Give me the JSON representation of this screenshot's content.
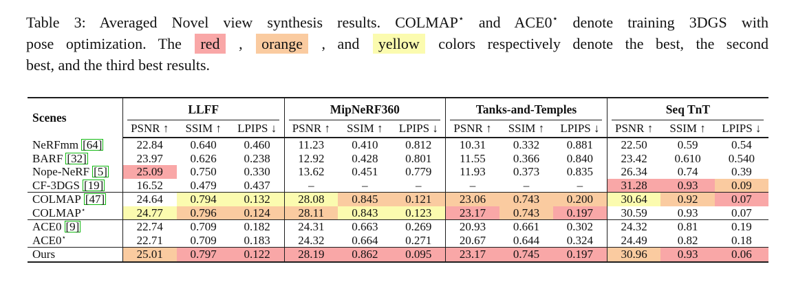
{
  "colors": {
    "best": "#F9A7A7",
    "second": "#FACBA0",
    "third": "#FBFBAF",
    "cite_border": "#0EB80E"
  },
  "caption": {
    "lines": [
      {
        "justify": true,
        "segments": [
          {
            "text": "Table 3: Averaged Novel view synthesis results. COLMAP",
            "style": "plain"
          },
          {
            "text": "⋆",
            "style": "sup",
            "name": "star-superscript"
          },
          {
            "text": " and ACE0",
            "style": "plain"
          },
          {
            "text": "⋆",
            "style": "sup",
            "name": "star-superscript"
          },
          {
            "text": " denote training 3DGS with",
            "style": "plain"
          }
        ]
      },
      {
        "justify": true,
        "segments": [
          {
            "text": "pose optimization. The ",
            "style": "plain"
          },
          {
            "text": "red",
            "style": "hl-r",
            "name": "red-swatch"
          },
          {
            "text": " , ",
            "style": "plain"
          },
          {
            "text": "orange",
            "style": "hl-o",
            "name": "orange-swatch"
          },
          {
            "text": " , and ",
            "style": "plain"
          },
          {
            "text": "yellow",
            "style": "hl-y",
            "name": "yellow-swatch"
          },
          {
            "text": " colors respectively denote the best, the second",
            "style": "plain"
          }
        ]
      },
      {
        "justify": false,
        "segments": [
          {
            "text": "best, and the third best results.",
            "style": "plain"
          }
        ]
      }
    ]
  },
  "table": {
    "scenes_header": "Scenes",
    "groups": [
      {
        "label": "LLFF"
      },
      {
        "label": "MipNeRF360"
      },
      {
        "label": "Tanks-and-Temples"
      },
      {
        "label": "Seq TnT"
      }
    ],
    "metric_headers": [
      "PSNR ↑",
      "SSIM ↑",
      "LPIPS ↓"
    ],
    "rows": [
      {
        "scene": {
          "name": "NeRFmm",
          "cite": "[64]"
        },
        "section_start": false,
        "values": [
          "22.84",
          "0.640",
          "0.460",
          "11.23",
          "0.410",
          "0.812",
          "10.31",
          "0.332",
          "0.881",
          "22.50",
          "0.59",
          "0.54"
        ],
        "hl": [
          null,
          null,
          null,
          null,
          null,
          null,
          null,
          null,
          null,
          null,
          null,
          null
        ]
      },
      {
        "scene": {
          "name": "BARF",
          "cite": "[32]"
        },
        "section_start": false,
        "values": [
          "23.97",
          "0.626",
          "0.238",
          "12.92",
          "0.428",
          "0.801",
          "11.55",
          "0.366",
          "0.840",
          "23.42",
          "0.610",
          "0.540"
        ],
        "hl": [
          null,
          null,
          null,
          null,
          null,
          null,
          null,
          null,
          null,
          null,
          null,
          null
        ]
      },
      {
        "scene": {
          "name": "Nope-NeRF",
          "cite": "[5]"
        },
        "section_start": false,
        "values": [
          "25.09",
          "0.750",
          "0.330",
          "13.62",
          "0.451",
          "0.779",
          "11.93",
          "0.373",
          "0.835",
          "26.34",
          "0.74",
          "0.39"
        ],
        "hl": [
          "r",
          null,
          null,
          null,
          null,
          null,
          null,
          null,
          null,
          null,
          null,
          null
        ]
      },
      {
        "scene": {
          "name": "CF-3DGS",
          "cite": "[19]"
        },
        "section_start": false,
        "values": [
          "16.52",
          "0.479",
          "0.437",
          "–",
          "–",
          "–",
          "–",
          "–",
          "–",
          "31.28",
          "0.93",
          "0.09"
        ],
        "hl": [
          null,
          null,
          null,
          null,
          null,
          null,
          null,
          null,
          null,
          "r",
          "r",
          "o"
        ]
      },
      {
        "scene": {
          "name": "COLMAP",
          "cite": "[47]"
        },
        "section_start": true,
        "values": [
          "24.64",
          "0.794",
          "0.132",
          "28.08",
          "0.845",
          "0.121",
          "23.06",
          "0.743",
          "0.200",
          "30.64",
          "0.92",
          "0.07"
        ],
        "hl": [
          null,
          "y",
          "y",
          "y",
          "o",
          "o",
          "o",
          "o",
          "o",
          "y",
          "o",
          "r"
        ]
      },
      {
        "scene": {
          "name": "COLMAP",
          "sup": "⋆"
        },
        "section_start": false,
        "values": [
          "24.77",
          "0.796",
          "0.124",
          "28.11",
          "0.843",
          "0.123",
          "23.17",
          "0.743",
          "0.197",
          "30.59",
          "0.93",
          "0.07"
        ],
        "hl": [
          "y",
          "o",
          "o",
          "o",
          "y",
          "y",
          "r",
          "o",
          "r",
          null,
          null,
          null
        ]
      },
      {
        "scene": {
          "name": "ACE0",
          "cite": "[9]"
        },
        "section_start": true,
        "values": [
          "22.74",
          "0.709",
          "0.182",
          "24.31",
          "0.663",
          "0.269",
          "20.93",
          "0.661",
          "0.302",
          "24.32",
          "0.81",
          "0.19"
        ],
        "hl": [
          null,
          null,
          null,
          null,
          null,
          null,
          null,
          null,
          null,
          null,
          null,
          null
        ]
      },
      {
        "scene": {
          "name": "ACE0",
          "sup": "⋆"
        },
        "section_start": false,
        "values": [
          "22.71",
          "0.709",
          "0.183",
          "24.32",
          "0.664",
          "0.271",
          "20.67",
          "0.644",
          "0.324",
          "24.49",
          "0.82",
          "0.18"
        ],
        "hl": [
          null,
          null,
          null,
          null,
          null,
          null,
          null,
          null,
          null,
          null,
          null,
          null
        ]
      },
      {
        "scene": {
          "name": "Ours"
        },
        "section_start": true,
        "values": [
          "25.01",
          "0.797",
          "0.122",
          "28.19",
          "0.862",
          "0.095",
          "23.17",
          "0.745",
          "0.197",
          "30.96",
          "0.93",
          "0.06"
        ],
        "hl": [
          "o",
          "r",
          "r",
          "r",
          "r",
          "r",
          "r",
          "r",
          "r",
          "o",
          "r",
          "r"
        ]
      }
    ]
  }
}
